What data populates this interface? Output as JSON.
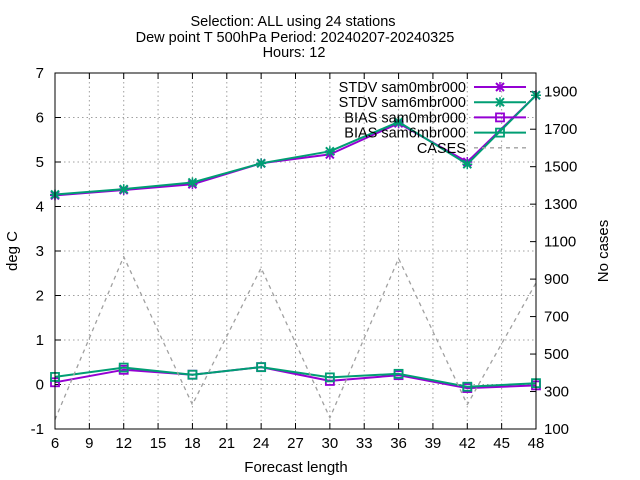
{
  "chart_data": {
    "type": "line",
    "title_lines": [
      "Selection: ALL using    24 stations",
      "Dew point T 500hPa   Period: 20240207-20240325",
      "Hours: 12"
    ],
    "xlabel": "Forecast length",
    "ylabel": "deg C",
    "y2label": "No cases",
    "x_ticks": [
      6,
      9,
      12,
      15,
      18,
      21,
      24,
      27,
      30,
      33,
      36,
      39,
      42,
      45,
      48
    ],
    "xlim": [
      6,
      48
    ],
    "ylim": [
      -1,
      7
    ],
    "y_ticks": [
      -1,
      0,
      1,
      2,
      3,
      4,
      5,
      6,
      7
    ],
    "y2lim": [
      100,
      2000
    ],
    "y2_ticks": [
      100,
      300,
      500,
      700,
      900,
      1100,
      1300,
      1500,
      1700,
      1900
    ],
    "grid": true,
    "legend_position": "top-right",
    "series": [
      {
        "name": "STDV sam0mbr000",
        "color": "#9400d3",
        "marker": "x",
        "dashed": false,
        "axis": "left",
        "x": [
          6,
          12,
          18,
          24,
          30,
          36,
          42,
          48
        ],
        "values": [
          4.25,
          4.37,
          4.5,
          4.97,
          5.17,
          5.87,
          5.0,
          6.5
        ]
      },
      {
        "name": "STDV sam6mbr000",
        "color": "#009e73",
        "marker": "x",
        "dashed": false,
        "axis": "left",
        "x": [
          6,
          12,
          18,
          24,
          30,
          36,
          42,
          48
        ],
        "values": [
          4.27,
          4.39,
          4.54,
          4.97,
          5.24,
          5.9,
          4.95,
          6.5
        ]
      },
      {
        "name": "BIAS sam0mbr000",
        "color": "#9400d3",
        "marker": "square",
        "dashed": false,
        "axis": "left",
        "x": [
          6,
          12,
          18,
          24,
          30,
          36,
          42,
          48
        ],
        "values": [
          0.05,
          0.33,
          0.22,
          0.39,
          0.08,
          0.21,
          -0.08,
          -0.02
        ]
      },
      {
        "name": "BIAS sam6mbr000",
        "color": "#009e73",
        "marker": "square",
        "dashed": false,
        "axis": "left",
        "x": [
          6,
          12,
          18,
          24,
          30,
          36,
          42,
          48
        ],
        "values": [
          0.17,
          0.38,
          0.22,
          0.39,
          0.16,
          0.24,
          -0.05,
          0.03
        ]
      },
      {
        "name": "CASES",
        "color": "#a0a0a0",
        "marker": "none",
        "dashed": true,
        "axis": "right",
        "x": [
          6,
          12,
          18,
          24,
          30,
          36,
          42,
          48
        ],
        "values": [
          150,
          1020,
          230,
          960,
          160,
          1010,
          230,
          880
        ]
      }
    ]
  }
}
